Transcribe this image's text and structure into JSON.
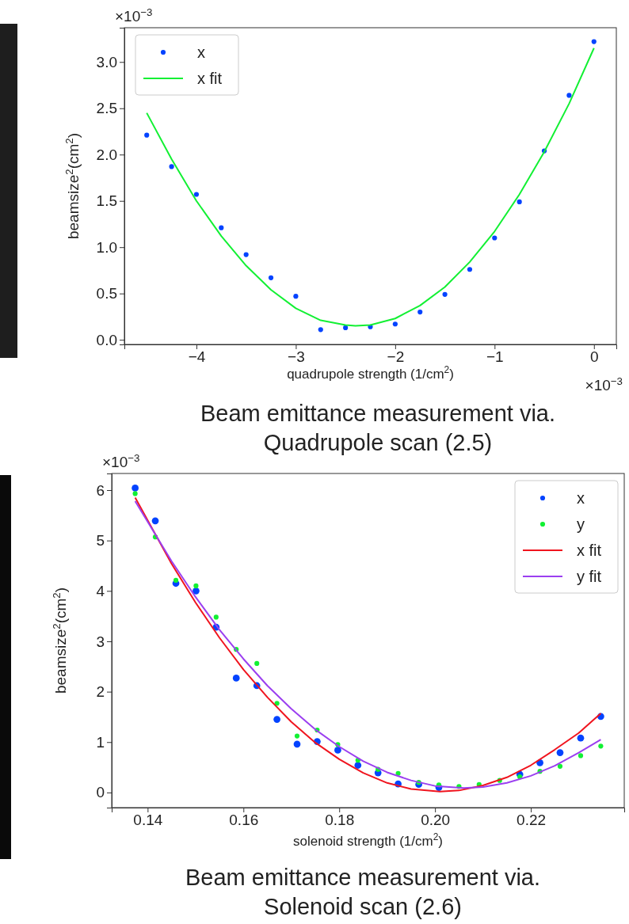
{
  "chart_data": [
    {
      "type": "scatter",
      "title": "Beam emittance measurement via. Quadrupole scan (2.5)",
      "xlabel": "quadrupole strength (1/cm$^{2}$)",
      "ylabel": "beamsize$^{2}$(cm$^{2}$)",
      "annotations": [
        "×10$^{−3}$",
        "×10$^{−3}$"
      ],
      "x": [
        -4.5,
        -4.25,
        -4.0,
        -3.75,
        -3.5,
        -3.25,
        -3.0,
        -2.75,
        -2.5,
        -2.25,
        -2.0,
        -1.75,
        -1.5,
        -1.25,
        -1.0,
        -0.75,
        -0.5,
        -0.25,
        0
      ],
      "series": [
        {
          "name": "x",
          "marker": "circle",
          "color": "#0343ff",
          "values": [
            2.21,
            1.87,
            1.57,
            1.21,
            0.92,
            0.67,
            0.47,
            0.11,
            0.13,
            0.14,
            0.17,
            0.3,
            0.49,
            0.76,
            1.1,
            1.49,
            2.04,
            2.64,
            3.22
          ]
        },
        {
          "name": "x fit",
          "type": "line",
          "color": "#12f033",
          "x": [
            -4.5,
            -4.25,
            -4.0,
            -3.75,
            -3.5,
            -3.25,
            -3.0,
            -2.75,
            -2.5,
            -2.4,
            -2.25,
            -2.0,
            -1.75,
            -1.5,
            -1.25,
            -1.0,
            -0.75,
            -0.5,
            -0.25,
            0
          ],
          "values": [
            2.45,
            1.95,
            1.5,
            1.12,
            0.8,
            0.54,
            0.34,
            0.21,
            0.16,
            0.15,
            0.16,
            0.23,
            0.37,
            0.57,
            0.84,
            1.17,
            1.57,
            2.03,
            2.55,
            3.15
          ]
        }
      ],
      "xlim": [
        -4.725,
        0.225
      ],
      "xticks": [
        {
          "value": -4,
          "label": "−4"
        },
        {
          "value": -3,
          "label": "−3"
        },
        {
          "value": -2,
          "label": "−2"
        },
        {
          "value": -1,
          "label": "−1"
        },
        0
      ],
      "ylim": [
        -0.05,
        3.37
      ],
      "yticks": [
        {
          "value": 0,
          "label": "0.0"
        },
        0.5,
        {
          "value": 1,
          "label": "1.0"
        },
        1.5,
        {
          "value": 2,
          "label": "2.0"
        },
        2.5,
        {
          "value": 3,
          "label": "3.0"
        }
      ],
      "legend": "top left"
    },
    {
      "type": "scatter",
      "title": "Beam emittance measurement via. Solenoid scan (2.6)",
      "xlabel": "solenoid strength (1/cm$^{2}$)",
      "ylabel": "beamsize$^{2}$(cm$^{2}$)",
      "annotations": [
        "×10$^{−3}$"
      ],
      "x": [
        0.1374,
        0.1416,
        0.1459,
        0.1501,
        0.1543,
        0.1585,
        0.1628,
        0.167,
        0.1712,
        0.1754,
        0.1797,
        0.1839,
        0.1881,
        0.1923,
        0.1966,
        0.2008,
        0.205,
        0.2092,
        0.2135,
        0.2177,
        0.2219,
        0.2261,
        0.2304,
        0.2346
      ],
      "series": [
        {
          "name": "x",
          "marker": "circle",
          "color": "#0343ff",
          "values": [
            6.04,
            5.39,
            4.15,
            4.0,
            3.28,
            2.27,
            2.12,
            1.45,
            0.96,
            1.01,
            0.84,
            0.54,
            0.39,
            0.17,
            0.16,
            0.1,
            null,
            null,
            null,
            0.36,
            0.59,
            0.79,
            1.08,
            1.51
          ]
        },
        {
          "name": "y",
          "marker": "circle",
          "color": "#12f033",
          "values": [
            5.93,
            5.07,
            4.21,
            4.1,
            3.48,
            2.84,
            2.56,
            1.77,
            1.12,
            1.24,
            0.95,
            0.64,
            0.46,
            0.38,
            0.2,
            0.15,
            0.12,
            0.16,
            0.24,
            0.31,
            0.42,
            0.52,
            0.73,
            0.92
          ]
        },
        {
          "name": "x fit",
          "type": "line",
          "color": "#f0141e",
          "x": [
            0.1374,
            0.145,
            0.15,
            0.155,
            0.16,
            0.165,
            0.17,
            0.175,
            0.18,
            0.185,
            0.19,
            0.195,
            0.201,
            0.205,
            0.21,
            0.215,
            0.22,
            0.225,
            0.23,
            0.2346
          ],
          "values": [
            5.85,
            4.54,
            3.77,
            3.07,
            2.44,
            1.89,
            1.4,
            0.99,
            0.66,
            0.39,
            0.19,
            0.07,
            0.02,
            0.04,
            0.14,
            0.3,
            0.54,
            0.85,
            1.18,
            1.57
          ]
        },
        {
          "name": "y fit",
          "type": "line",
          "color": "#9b3ff0",
          "x": [
            0.1374,
            0.145,
            0.15,
            0.155,
            0.16,
            0.165,
            0.17,
            0.175,
            0.18,
            0.185,
            0.19,
            0.195,
            0.2,
            0.206,
            0.21,
            0.215,
            0.22,
            0.225,
            0.23,
            0.2346
          ],
          "values": [
            5.78,
            4.59,
            3.88,
            3.23,
            2.65,
            2.12,
            1.66,
            1.25,
            0.91,
            0.62,
            0.4,
            0.24,
            0.13,
            0.09,
            0.11,
            0.19,
            0.33,
            0.53,
            0.79,
            1.05
          ]
        }
      ],
      "xlim": [
        0.1325,
        0.2395
      ],
      "xticks": [
        0.14,
        0.16,
        0.18,
        {
          "value": 0.2,
          "label": "0.20"
        },
        0.22
      ],
      "ylim": [
        -0.3,
        6.33
      ],
      "yticks": [
        0,
        1,
        2,
        3,
        4,
        5,
        6
      ],
      "legend": "top right"
    }
  ]
}
